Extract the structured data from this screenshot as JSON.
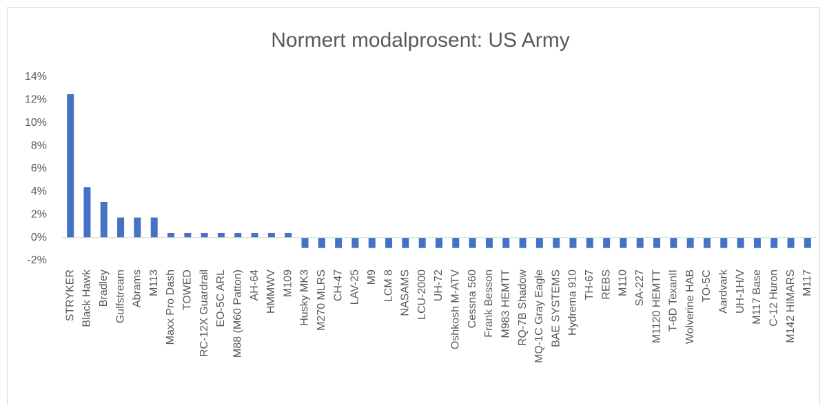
{
  "chart_data": {
    "type": "bar",
    "title": "Normert modalprosent: US Army",
    "categories": [
      "STRYKER",
      "Black Hawk",
      "Bradley",
      "Gulfstream",
      "Abrams",
      "M113",
      "Maxx Pro Dash",
      "TOWED",
      "RC-12X Guardrail",
      "EO-5C ARL",
      "M88 (M60 Patton)",
      "AH-64",
      "HMMWV",
      "M109",
      "Husky MK3",
      "M270 MLRS",
      "CH-47",
      "LAV-25",
      "M9",
      "LCM 8",
      "NASAMS",
      "LCU-2000",
      "UH-72",
      "Oshkosh M-ATV",
      "Cessna 560",
      "Frank Besson",
      "M983 HEMTT",
      "RQ-7B Shadow",
      "MQ-1C Gray Eagle",
      "BAE SYSTEMS",
      "Hydrema 910",
      "TH-67",
      "REBS",
      "M110",
      "SA-227",
      "M1120 HEMTT",
      "T-6D TexanII",
      "Wolverine HAB",
      "TO-5C",
      "Aardvark",
      "UH-1H/V",
      "M117 Base",
      "C-12 Huron",
      "M142 HIMARS",
      "M117"
    ],
    "values": [
      12.5,
      4.4,
      3.1,
      1.75,
      1.75,
      1.75,
      0.4,
      0.4,
      0.4,
      0.4,
      0.4,
      0.4,
      0.4,
      0.4,
      -0.9,
      -0.9,
      -0.9,
      -0.9,
      -0.9,
      -0.9,
      -0.9,
      -0.9,
      -0.9,
      -0.9,
      -0.9,
      -0.9,
      -0.9,
      -0.9,
      -0.9,
      -0.9,
      -0.9,
      -0.9,
      -0.9,
      -0.9,
      -0.9,
      -0.9,
      -0.9,
      -0.9,
      -0.9,
      -0.9,
      -0.9,
      -0.9,
      -0.9,
      -0.9,
      -0.9
    ],
    "color": "#4472c4",
    "ylim": [
      -2,
      14
    ],
    "yticks": [
      {
        "value": -2,
        "label": "-2%"
      },
      {
        "value": 0,
        "label": "0%"
      },
      {
        "value": 2,
        "label": "2%"
      },
      {
        "value": 4,
        "label": "4%"
      },
      {
        "value": 6,
        "label": "6%"
      },
      {
        "value": 8,
        "label": "8%"
      },
      {
        "value": 10,
        "label": "10%"
      },
      {
        "value": 12,
        "label": "12%"
      },
      {
        "value": 14,
        "label": "14%"
      }
    ],
    "grid": false
  }
}
